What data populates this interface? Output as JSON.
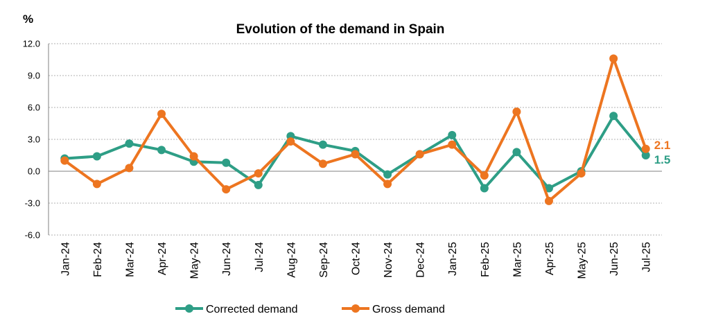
{
  "chart_data": {
    "type": "line",
    "title": "Evolution of the demand in Spain",
    "ylabel": "%",
    "xlabel": "",
    "ylim": [
      -6.0,
      12.0
    ],
    "yticks": [
      "12.0",
      "9.0",
      "6.0",
      "3.0",
      "0.0",
      "-3.0",
      "-6.0"
    ],
    "grid": true,
    "legend_position": "bottom",
    "categories": [
      "Jan-24",
      "Feb-24",
      "Mar-24",
      "Apr-24",
      "May-24",
      "Jun-24",
      "Jul-24",
      "Aug-24",
      "Sep-24",
      "Oct-24",
      "Nov-24",
      "Dec-24",
      "Jan-25",
      "Feb-25",
      "Mar-25",
      "Apr-25",
      "May-25",
      "Jun-25",
      "Jul-25"
    ],
    "series": [
      {
        "name": "Corrected demand",
        "color": "#2e9e86",
        "values": [
          1.2,
          1.4,
          2.6,
          2.0,
          0.9,
          0.8,
          -1.3,
          3.3,
          2.5,
          1.9,
          -0.3,
          1.6,
          3.4,
          -1.6,
          1.8,
          -1.6,
          0.0,
          5.2,
          1.5
        ],
        "end_label": "1.5"
      },
      {
        "name": "Gross demand",
        "color": "#ed7520",
        "values": [
          1.0,
          -1.2,
          0.3,
          5.4,
          1.4,
          -1.7,
          -0.2,
          2.8,
          0.7,
          1.6,
          -1.2,
          1.6,
          2.5,
          -0.4,
          5.6,
          -2.8,
          -0.2,
          10.6,
          2.1
        ],
        "end_label": "2.1"
      }
    ]
  }
}
